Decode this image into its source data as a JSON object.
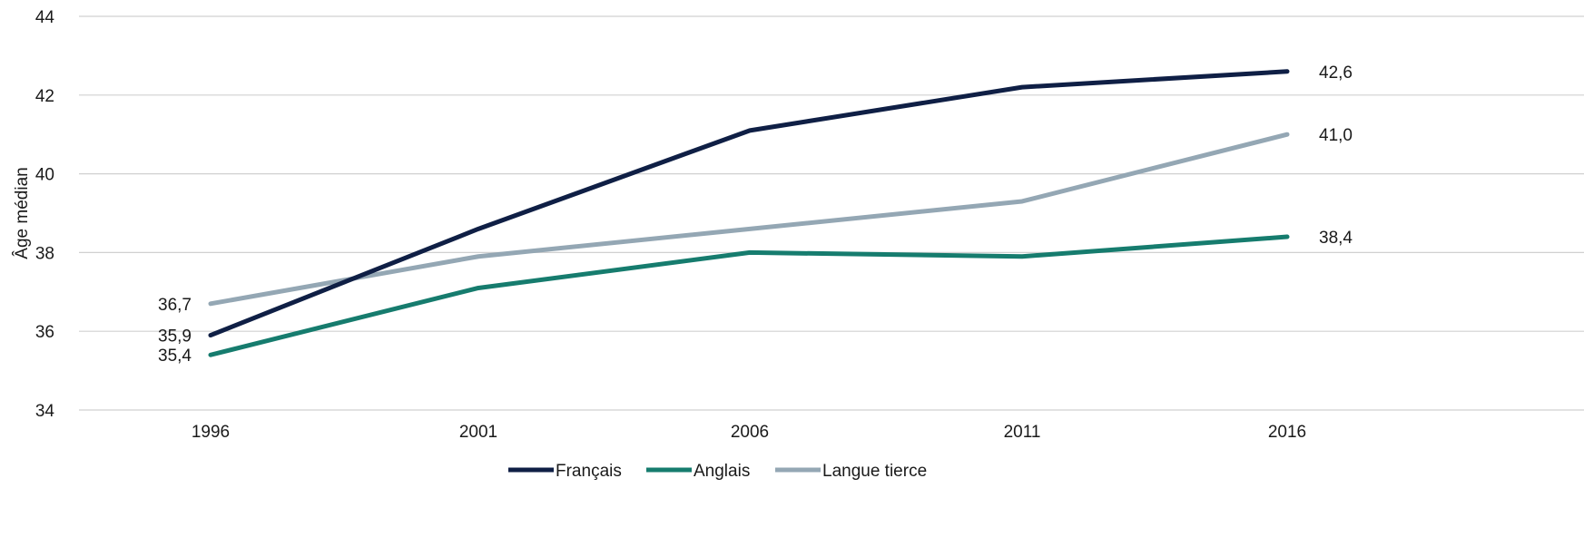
{
  "chart_data": {
    "type": "line",
    "title": "",
    "xlabel": "",
    "ylabel": "Âge médian",
    "ylim": [
      34,
      44
    ],
    "yticks": [
      34,
      36,
      38,
      40,
      42,
      44
    ],
    "grid": true,
    "legend_position": "bottom",
    "categories": [
      "1996",
      "2001",
      "2006",
      "2011",
      "2016"
    ],
    "series": [
      {
        "name": "Français",
        "color": "#0f1f45",
        "values": [
          35.9,
          38.6,
          41.1,
          42.2,
          42.6
        ]
      },
      {
        "name": "Anglais",
        "color": "#167c6e",
        "values": [
          35.4,
          37.1,
          38.0,
          37.9,
          38.4
        ]
      },
      {
        "name": "Langue tierce",
        "color": "#94a7b4",
        "values": [
          36.7,
          37.9,
          38.6,
          39.3,
          41.0
        ]
      }
    ],
    "data_labels": {
      "first": [
        "35,9",
        "35,4",
        "36,7"
      ],
      "last": [
        "42,6",
        "38,4",
        "41,0"
      ]
    }
  }
}
